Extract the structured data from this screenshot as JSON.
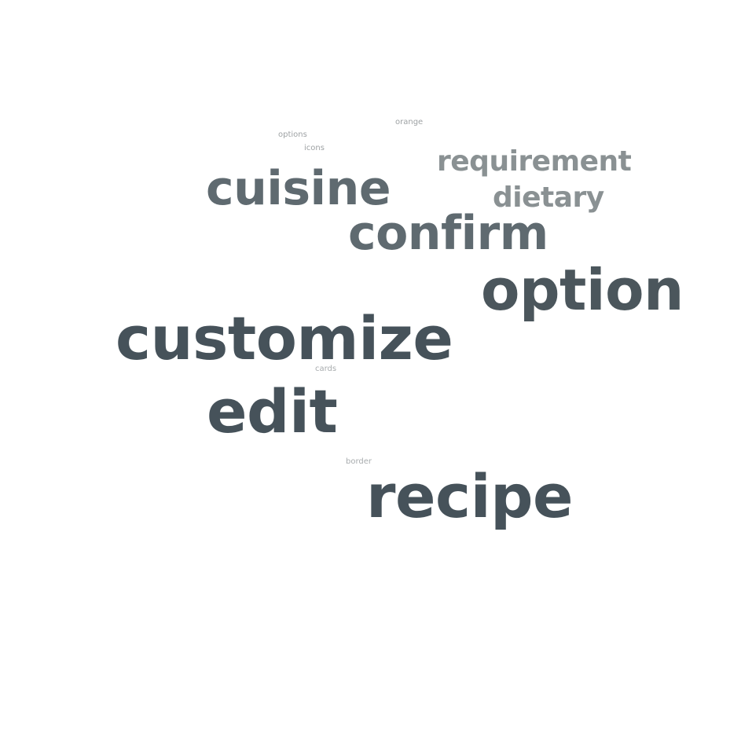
{
  "words": [
    {
      "key": "orange",
      "text": "orange",
      "color": "#9ea2a4"
    },
    {
      "key": "options",
      "text": "options",
      "color": "#9ea2a4"
    },
    {
      "key": "icons",
      "text": "icons",
      "color": "#9ea2a4"
    },
    {
      "key": "requirement",
      "text": "requirement",
      "color": "#8a9193"
    },
    {
      "key": "cuisine",
      "text": "cuisine",
      "color": "#5f6a70"
    },
    {
      "key": "dietary",
      "text": "dietary",
      "color": "#8a9193"
    },
    {
      "key": "confirm",
      "text": "confirm",
      "color": "#5f6a70"
    },
    {
      "key": "option",
      "text": "option",
      "color": "#4b565c"
    },
    {
      "key": "customize",
      "text": "customize",
      "color": "#46525a"
    },
    {
      "key": "cards",
      "text": "cards",
      "color": "#a8acae"
    },
    {
      "key": "edit",
      "text": "edit",
      "color": "#46525a"
    },
    {
      "key": "border",
      "text": "border",
      "color": "#a8acae"
    },
    {
      "key": "recipe",
      "text": "recipe",
      "color": "#46525a"
    }
  ]
}
